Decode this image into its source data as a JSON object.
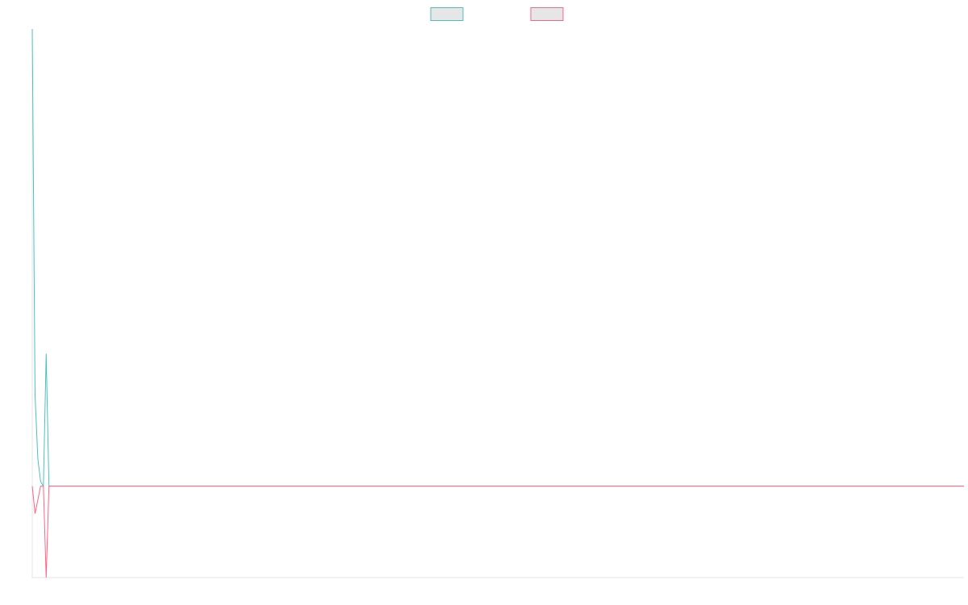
{
  "chart_data": {
    "type": "line",
    "title": "",
    "xlabel": "",
    "ylabel": "",
    "legend": "top-center",
    "grid": false,
    "xlim": [
      0,
      399
    ],
    "ylim": [
      -0.2,
      1.0
    ],
    "series": [
      {
        "color": "#4bc0c0",
        "legend_fill": "#e6e6e6",
        "sparse_values": [
          [
            0,
            1.0
          ],
          [
            1,
            0.2
          ],
          [
            2,
            0.06
          ],
          [
            3,
            0.01
          ],
          [
            4,
            0.0
          ],
          [
            5,
            0.29
          ],
          [
            6,
            0.0
          ]
        ],
        "baseline": 0.0
      },
      {
        "color": "#ff6384",
        "legend_fill": "#e6e6e6",
        "sparse_values": [
          [
            0,
            0.0
          ],
          [
            1,
            -0.06
          ],
          [
            2,
            -0.03
          ],
          [
            3,
            0.0
          ],
          [
            4,
            0.0
          ],
          [
            5,
            -0.2
          ],
          [
            6,
            0.0
          ]
        ],
        "baseline": 0.0
      }
    ]
  }
}
